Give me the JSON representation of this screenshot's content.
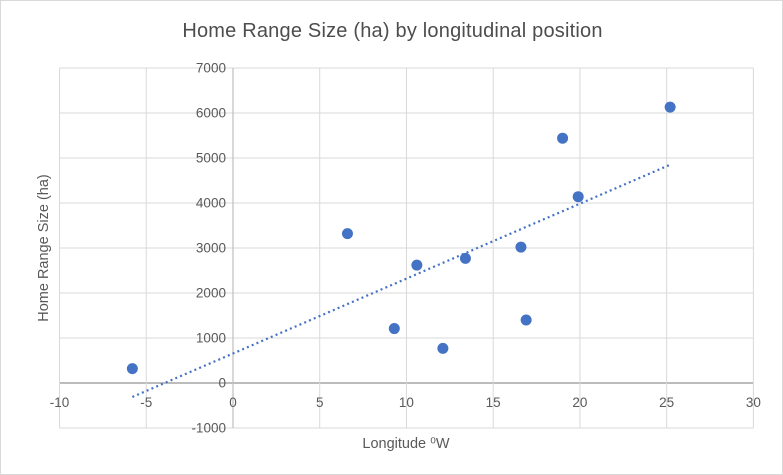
{
  "chart": {
    "title": "Home Range Size (ha) by longitudinal position",
    "x_axis_title": "Longitude ⁰W",
    "y_axis_title": "Home Range Size (ha)"
  },
  "colors": {
    "marker": "#4472C4",
    "trendline": "#4472C4",
    "gridline": "#D9D9D9",
    "x_axis_line": "#A6A6A6",
    "y_axis_line": "#BFBFBF",
    "tick_text": "#595959",
    "title_text": "#4D4D4D",
    "border": "#D9D9D9",
    "background": "#FFFFFF"
  },
  "chart_data": {
    "type": "scatter",
    "title": "Home Range Size (ha) by longitudinal position",
    "xlabel": "Longitude ⁰W",
    "ylabel": "Home Range Size (ha)",
    "xlim": [
      -10,
      30
    ],
    "ylim": [
      -1000,
      7000
    ],
    "x_ticks": [
      -10,
      -5,
      0,
      5,
      10,
      15,
      20,
      25,
      30
    ],
    "y_ticks": [
      -1000,
      0,
      1000,
      2000,
      3000,
      4000,
      5000,
      6000,
      7000
    ],
    "grid": true,
    "legend": false,
    "series": [
      {
        "name": "Home Range Size (ha)",
        "marker": "circle",
        "color": "#4472C4",
        "points": [
          [
            -5.8,
            320
          ],
          [
            6.6,
            3320
          ],
          [
            9.3,
            1210
          ],
          [
            10.6,
            2620
          ],
          [
            12.1,
            770
          ],
          [
            13.4,
            2770
          ],
          [
            16.6,
            3020
          ],
          [
            16.9,
            1400
          ],
          [
            19.0,
            5440
          ],
          [
            19.9,
            4140
          ],
          [
            25.2,
            6130
          ]
        ]
      }
    ],
    "trendline": {
      "style": "dotted",
      "color": "#4472C4",
      "x1": -5.8,
      "y1": -310,
      "x2": 25.2,
      "y2": 4850
    }
  }
}
